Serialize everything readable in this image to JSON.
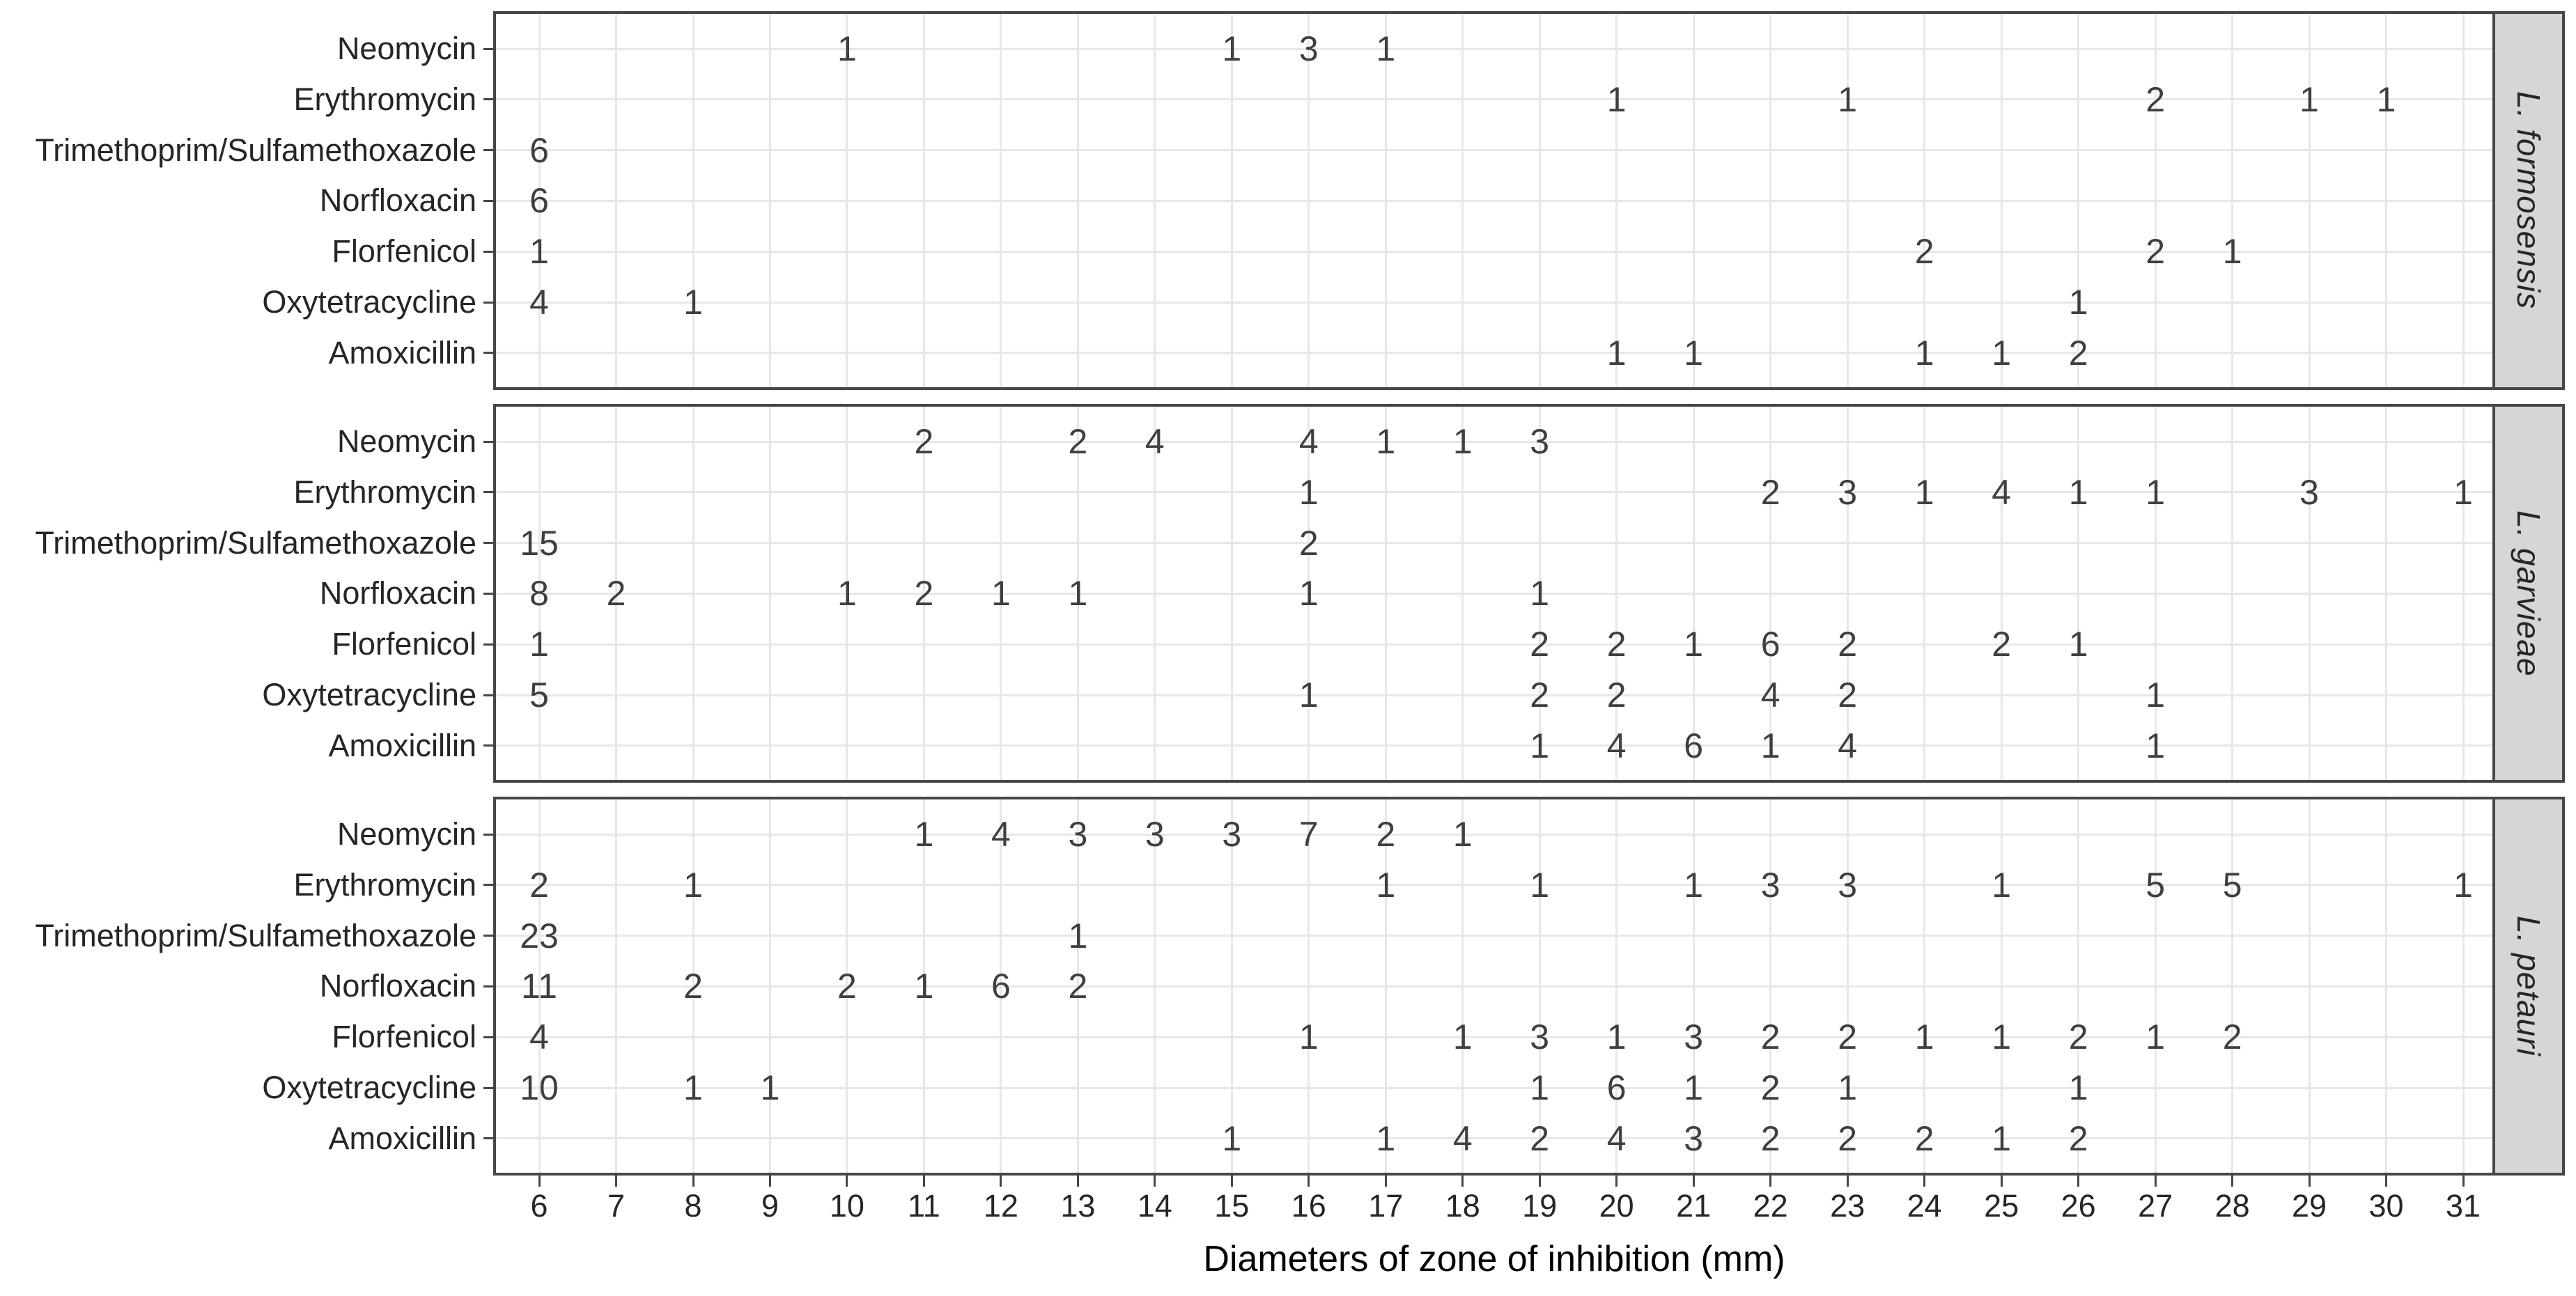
{
  "style": {
    "background": "#ffffff",
    "panel_background": "#ffffff",
    "panel_border": "#474747",
    "gridline": "#e7e7e7",
    "strip_fill": "#d6d6d6",
    "strip_border": "#474747",
    "axis_text": "#262626",
    "count_text": "#3f3f3f",
    "title_text": "#000000"
  },
  "chart_data": {
    "type": "scatter",
    "representation": "count-labels",
    "title": "",
    "xlabel": "Diameters of zone of inhibition (mm)",
    "ylabel": "",
    "x_range": [
      6,
      31
    ],
    "x_ticks": [
      6,
      7,
      8,
      9,
      10,
      11,
      12,
      13,
      14,
      15,
      16,
      17,
      18,
      19,
      20,
      21,
      22,
      23,
      24,
      25,
      26,
      27,
      28,
      29,
      30,
      31
    ],
    "grid": "on",
    "legend": "none",
    "facet_position": "right",
    "antibiotics": [
      "Neomycin",
      "Erythromycin",
      "Trimethoprim/Sulfamethoxazole",
      "Norfloxacin",
      "Florfenicol",
      "Oxytetracycline",
      "Amoxicillin"
    ],
    "facets": [
      {
        "species": "L. formosensis",
        "rows": [
          {
            "antibiotic": "Neomycin",
            "points": [
              {
                "x": 10,
                "n": 1
              },
              {
                "x": 15,
                "n": 1
              },
              {
                "x": 16,
                "n": 3
              },
              {
                "x": 17,
                "n": 1
              }
            ]
          },
          {
            "antibiotic": "Erythromycin",
            "points": [
              {
                "x": 20,
                "n": 1
              },
              {
                "x": 23,
                "n": 1
              },
              {
                "x": 27,
                "n": 2
              },
              {
                "x": 29,
                "n": 1
              },
              {
                "x": 30,
                "n": 1
              }
            ]
          },
          {
            "antibiotic": "Trimethoprim/Sulfamethoxazole",
            "points": [
              {
                "x": 6,
                "n": 6
              }
            ]
          },
          {
            "antibiotic": "Norfloxacin",
            "points": [
              {
                "x": 6,
                "n": 6
              }
            ]
          },
          {
            "antibiotic": "Florfenicol",
            "points": [
              {
                "x": 6,
                "n": 1
              },
              {
                "x": 24,
                "n": 2
              },
              {
                "x": 27,
                "n": 2
              },
              {
                "x": 28,
                "n": 1
              }
            ]
          },
          {
            "antibiotic": "Oxytetracycline",
            "points": [
              {
                "x": 6,
                "n": 4
              },
              {
                "x": 8,
                "n": 1
              },
              {
                "x": 26,
                "n": 1
              }
            ]
          },
          {
            "antibiotic": "Amoxicillin",
            "points": [
              {
                "x": 20,
                "n": 1
              },
              {
                "x": 21,
                "n": 1
              },
              {
                "x": 24,
                "n": 1
              },
              {
                "x": 25,
                "n": 1
              },
              {
                "x": 26,
                "n": 2
              }
            ]
          }
        ]
      },
      {
        "species": "L. garvieae",
        "rows": [
          {
            "antibiotic": "Neomycin",
            "points": [
              {
                "x": 11,
                "n": 2
              },
              {
                "x": 13,
                "n": 2
              },
              {
                "x": 14,
                "n": 4
              },
              {
                "x": 16,
                "n": 4
              },
              {
                "x": 17,
                "n": 1
              },
              {
                "x": 18,
                "n": 1
              },
              {
                "x": 19,
                "n": 3
              }
            ]
          },
          {
            "antibiotic": "Erythromycin",
            "points": [
              {
                "x": 16,
                "n": 1
              },
              {
                "x": 22,
                "n": 2
              },
              {
                "x": 23,
                "n": 3
              },
              {
                "x": 24,
                "n": 1
              },
              {
                "x": 25,
                "n": 4
              },
              {
                "x": 26,
                "n": 1
              },
              {
                "x": 27,
                "n": 1
              },
              {
                "x": 29,
                "n": 3
              },
              {
                "x": 31,
                "n": 1
              }
            ]
          },
          {
            "antibiotic": "Trimethoprim/Sulfamethoxazole",
            "points": [
              {
                "x": 6,
                "n": 15
              },
              {
                "x": 16,
                "n": 2
              }
            ]
          },
          {
            "antibiotic": "Norfloxacin",
            "points": [
              {
                "x": 6,
                "n": 8
              },
              {
                "x": 7,
                "n": 2
              },
              {
                "x": 10,
                "n": 1
              },
              {
                "x": 11,
                "n": 2
              },
              {
                "x": 12,
                "n": 1
              },
              {
                "x": 13,
                "n": 1
              },
              {
                "x": 16,
                "n": 1
              },
              {
                "x": 19,
                "n": 1
              }
            ]
          },
          {
            "antibiotic": "Florfenicol",
            "points": [
              {
                "x": 6,
                "n": 1
              },
              {
                "x": 19,
                "n": 2
              },
              {
                "x": 20,
                "n": 2
              },
              {
                "x": 21,
                "n": 1
              },
              {
                "x": 22,
                "n": 6
              },
              {
                "x": 23,
                "n": 2
              },
              {
                "x": 25,
                "n": 2
              },
              {
                "x": 26,
                "n": 1
              }
            ]
          },
          {
            "antibiotic": "Oxytetracycline",
            "points": [
              {
                "x": 6,
                "n": 5
              },
              {
                "x": 16,
                "n": 1
              },
              {
                "x": 19,
                "n": 2
              },
              {
                "x": 20,
                "n": 2
              },
              {
                "x": 22,
                "n": 4
              },
              {
                "x": 23,
                "n": 2
              },
              {
                "x": 27,
                "n": 1
              }
            ]
          },
          {
            "antibiotic": "Amoxicillin",
            "points": [
              {
                "x": 19,
                "n": 1
              },
              {
                "x": 20,
                "n": 4
              },
              {
                "x": 21,
                "n": 6
              },
              {
                "x": 22,
                "n": 1
              },
              {
                "x": 23,
                "n": 4
              },
              {
                "x": 27,
                "n": 1
              }
            ]
          }
        ]
      },
      {
        "species": "L. petauri",
        "rows": [
          {
            "antibiotic": "Neomycin",
            "points": [
              {
                "x": 11,
                "n": 1
              },
              {
                "x": 12,
                "n": 4
              },
              {
                "x": 13,
                "n": 3
              },
              {
                "x": 14,
                "n": 3
              },
              {
                "x": 15,
                "n": 3
              },
              {
                "x": 16,
                "n": 7
              },
              {
                "x": 17,
                "n": 2
              },
              {
                "x": 18,
                "n": 1
              }
            ]
          },
          {
            "antibiotic": "Erythromycin",
            "points": [
              {
                "x": 6,
                "n": 2
              },
              {
                "x": 8,
                "n": 1
              },
              {
                "x": 17,
                "n": 1
              },
              {
                "x": 19,
                "n": 1
              },
              {
                "x": 21,
                "n": 1
              },
              {
                "x": 22,
                "n": 3
              },
              {
                "x": 23,
                "n": 3
              },
              {
                "x": 25,
                "n": 1
              },
              {
                "x": 27,
                "n": 5
              },
              {
                "x": 28,
                "n": 5
              },
              {
                "x": 31,
                "n": 1
              }
            ]
          },
          {
            "antibiotic": "Trimethoprim/Sulfamethoxazole",
            "points": [
              {
                "x": 6,
                "n": 23
              },
              {
                "x": 13,
                "n": 1
              }
            ]
          },
          {
            "antibiotic": "Norfloxacin",
            "points": [
              {
                "x": 6,
                "n": 11
              },
              {
                "x": 8,
                "n": 2
              },
              {
                "x": 10,
                "n": 2
              },
              {
                "x": 11,
                "n": 1
              },
              {
                "x": 12,
                "n": 6
              },
              {
                "x": 13,
                "n": 2
              }
            ]
          },
          {
            "antibiotic": "Florfenicol",
            "points": [
              {
                "x": 6,
                "n": 4
              },
              {
                "x": 16,
                "n": 1
              },
              {
                "x": 18,
                "n": 1
              },
              {
                "x": 19,
                "n": 3
              },
              {
                "x": 20,
                "n": 1
              },
              {
                "x": 21,
                "n": 3
              },
              {
                "x": 22,
                "n": 2
              },
              {
                "x": 23,
                "n": 2
              },
              {
                "x": 24,
                "n": 1
              },
              {
                "x": 25,
                "n": 1
              },
              {
                "x": 26,
                "n": 2
              },
              {
                "x": 27,
                "n": 1
              },
              {
                "x": 28,
                "n": 2
              }
            ]
          },
          {
            "antibiotic": "Oxytetracycline",
            "points": [
              {
                "x": 6,
                "n": 10
              },
              {
                "x": 8,
                "n": 1
              },
              {
                "x": 9,
                "n": 1
              },
              {
                "x": 19,
                "n": 1
              },
              {
                "x": 20,
                "n": 6
              },
              {
                "x": 21,
                "n": 1
              },
              {
                "x": 22,
                "n": 2
              },
              {
                "x": 23,
                "n": 1
              },
              {
                "x": 26,
                "n": 1
              }
            ]
          },
          {
            "antibiotic": "Amoxicillin",
            "points": [
              {
                "x": 15,
                "n": 1
              },
              {
                "x": 17,
                "n": 1
              },
              {
                "x": 18,
                "n": 4
              },
              {
                "x": 19,
                "n": 2
              },
              {
                "x": 20,
                "n": 4
              },
              {
                "x": 21,
                "n": 3
              },
              {
                "x": 22,
                "n": 2
              },
              {
                "x": 23,
                "n": 2
              },
              {
                "x": 24,
                "n": 2
              },
              {
                "x": 25,
                "n": 1
              },
              {
                "x": 26,
                "n": 2
              }
            ]
          }
        ]
      }
    ]
  }
}
